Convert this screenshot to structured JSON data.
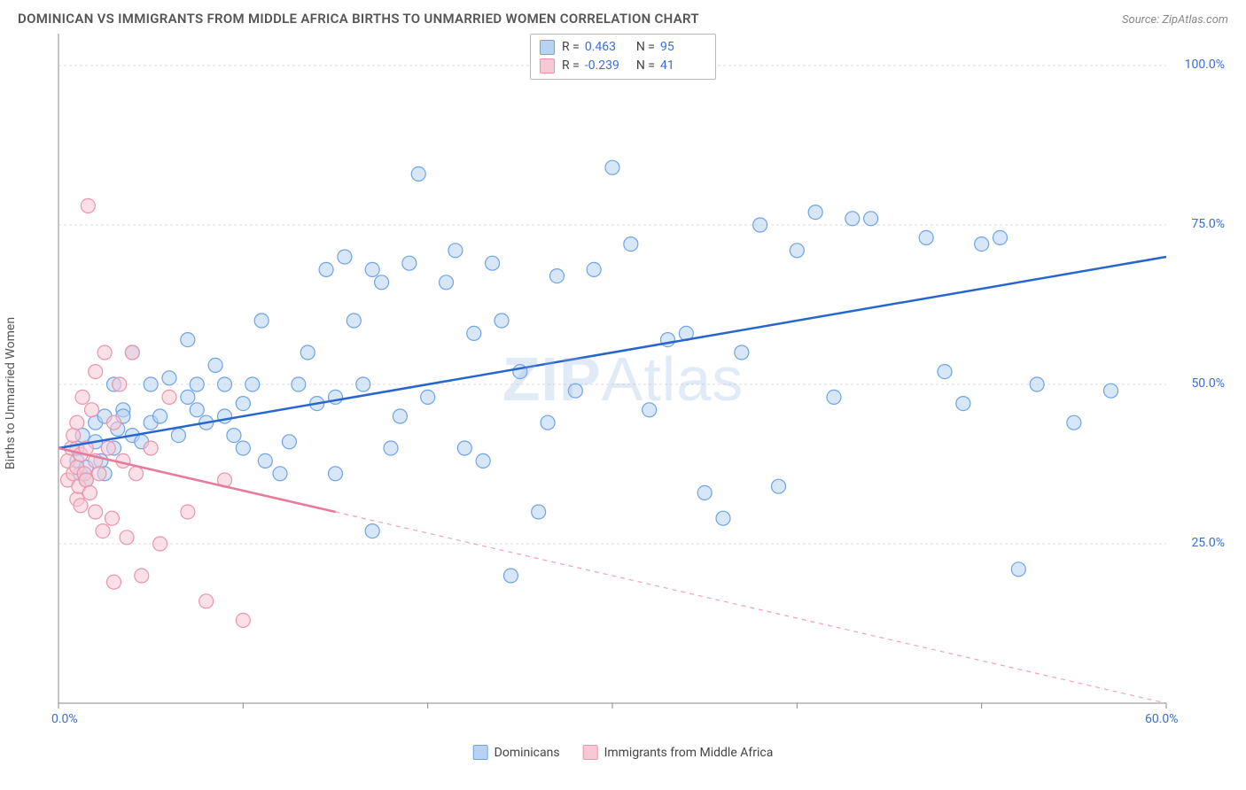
{
  "title": "DOMINICAN VS IMMIGRANTS FROM MIDDLE AFRICA BIRTHS TO UNMARRIED WOMEN CORRELATION CHART",
  "source": "Source: ZipAtlas.com",
  "y_axis_label": "Births to Unmarried Women",
  "watermark_a": "ZIP",
  "watermark_b": "Atlas",
  "chart": {
    "type": "scatter",
    "xlim": [
      0,
      60
    ],
    "ylim": [
      0,
      105
    ],
    "x_ticks": [
      0,
      10,
      20,
      30,
      40,
      50,
      60
    ],
    "y_ticks": [
      25,
      50,
      75,
      100
    ],
    "x_tick_labels": [
      "0.0%",
      "",
      "",
      "",
      "",
      "",
      "60.0%"
    ],
    "y_tick_labels": [
      "25.0%",
      "50.0%",
      "75.0%",
      "100.0%"
    ],
    "grid_color": "#dddddd",
    "axis_color": "#888888",
    "background_color": "#ffffff",
    "tick_label_color": "#3a6fd8",
    "marker_radius": 8,
    "marker_opacity": 0.55,
    "series": [
      {
        "name": "Dominicans",
        "fill": "#b8d3f2",
        "stroke": "#6da3e8",
        "line_color": "#2766cf",
        "R": "0.463",
        "N": "95",
        "trend": {
          "y_at_x0": 40,
          "y_at_x60": 70,
          "solid_until_x": 60
        },
        "points": [
          [
            1,
            38
          ],
          [
            1,
            40
          ],
          [
            1.2,
            36
          ],
          [
            1.3,
            42
          ],
          [
            1.5,
            37
          ],
          [
            1.5,
            35
          ],
          [
            2,
            44
          ],
          [
            2,
            41
          ],
          [
            2.3,
            38
          ],
          [
            2.5,
            45
          ],
          [
            2.5,
            36
          ],
          [
            3,
            40
          ],
          [
            3,
            50
          ],
          [
            3.2,
            43
          ],
          [
            3.5,
            46
          ],
          [
            3.5,
            45
          ],
          [
            4,
            42
          ],
          [
            4,
            55
          ],
          [
            4.5,
            41
          ],
          [
            5,
            50
          ],
          [
            5,
            44
          ],
          [
            5.5,
            45
          ],
          [
            6,
            51
          ],
          [
            6.5,
            42
          ],
          [
            7,
            48
          ],
          [
            7,
            57
          ],
          [
            7.5,
            46
          ],
          [
            7.5,
            50
          ],
          [
            8,
            44
          ],
          [
            8.5,
            53
          ],
          [
            9,
            45
          ],
          [
            9,
            50
          ],
          [
            9.5,
            42
          ],
          [
            10,
            40
          ],
          [
            10,
            47
          ],
          [
            10.5,
            50
          ],
          [
            11,
            60
          ],
          [
            11.2,
            38
          ],
          [
            12,
            36
          ],
          [
            12.5,
            41
          ],
          [
            13,
            50
          ],
          [
            13.5,
            55
          ],
          [
            14,
            47
          ],
          [
            14.5,
            68
          ],
          [
            15,
            48
          ],
          [
            15,
            36
          ],
          [
            15.5,
            70
          ],
          [
            16,
            60
          ],
          [
            16.5,
            50
          ],
          [
            17,
            27
          ],
          [
            17,
            68
          ],
          [
            17.5,
            66
          ],
          [
            18,
            40
          ],
          [
            18.5,
            45
          ],
          [
            19,
            69
          ],
          [
            19.5,
            83
          ],
          [
            20,
            48
          ],
          [
            21,
            66
          ],
          [
            21.5,
            71
          ],
          [
            22,
            40
          ],
          [
            22.5,
            58
          ],
          [
            23,
            38
          ],
          [
            23.5,
            69
          ],
          [
            24,
            60
          ],
          [
            24.5,
            20
          ],
          [
            25,
            52
          ],
          [
            26,
            30
          ],
          [
            26.5,
            44
          ],
          [
            27,
            67
          ],
          [
            28,
            49
          ],
          [
            29,
            68
          ],
          [
            30,
            84
          ],
          [
            31,
            72
          ],
          [
            32,
            46
          ],
          [
            33,
            57
          ],
          [
            34,
            58
          ],
          [
            35,
            33
          ],
          [
            36,
            29
          ],
          [
            37,
            55
          ],
          [
            38,
            75
          ],
          [
            39,
            34
          ],
          [
            40,
            71
          ],
          [
            41,
            77
          ],
          [
            42,
            48
          ],
          [
            43,
            76
          ],
          [
            44,
            76
          ],
          [
            47,
            73
          ],
          [
            48,
            52
          ],
          [
            49,
            47
          ],
          [
            50,
            72
          ],
          [
            51,
            73
          ],
          [
            52,
            21
          ],
          [
            53,
            50
          ],
          [
            55,
            44
          ],
          [
            57,
            49
          ]
        ]
      },
      {
        "name": "Immigrants from Middle Africa",
        "fill": "#f7c9d3",
        "stroke": "#ea94aa",
        "line_color": "#e87a9a",
        "R": "-0.239",
        "N": "41",
        "trend": {
          "y_at_x0": 40,
          "y_at_x60": 0,
          "solid_until_x": 15
        },
        "points": [
          [
            0.5,
            38
          ],
          [
            0.5,
            35
          ],
          [
            0.7,
            40
          ],
          [
            0.8,
            36
          ],
          [
            0.8,
            42
          ],
          [
            1,
            37
          ],
          [
            1,
            32
          ],
          [
            1,
            44
          ],
          [
            1.1,
            34
          ],
          [
            1.2,
            39
          ],
          [
            1.2,
            31
          ],
          [
            1.3,
            48
          ],
          [
            1.4,
            36
          ],
          [
            1.5,
            40
          ],
          [
            1.5,
            35
          ],
          [
            1.6,
            78
          ],
          [
            1.7,
            33
          ],
          [
            1.8,
            46
          ],
          [
            2,
            38
          ],
          [
            2,
            30
          ],
          [
            2,
            52
          ],
          [
            2.2,
            36
          ],
          [
            2.4,
            27
          ],
          [
            2.5,
            55
          ],
          [
            2.7,
            40
          ],
          [
            2.9,
            29
          ],
          [
            3,
            44
          ],
          [
            3,
            19
          ],
          [
            3.3,
            50
          ],
          [
            3.5,
            38
          ],
          [
            3.7,
            26
          ],
          [
            4,
            55
          ],
          [
            4.2,
            36
          ],
          [
            4.5,
            20
          ],
          [
            5,
            40
          ],
          [
            5.5,
            25
          ],
          [
            6,
            48
          ],
          [
            7,
            30
          ],
          [
            8,
            16
          ],
          [
            9,
            35
          ],
          [
            10,
            13
          ]
        ]
      }
    ]
  },
  "stats_legend_labels": {
    "R": "R =",
    "N": "N ="
  },
  "bottom_legend": [
    "Dominicans",
    "Immigrants from Middle Africa"
  ]
}
